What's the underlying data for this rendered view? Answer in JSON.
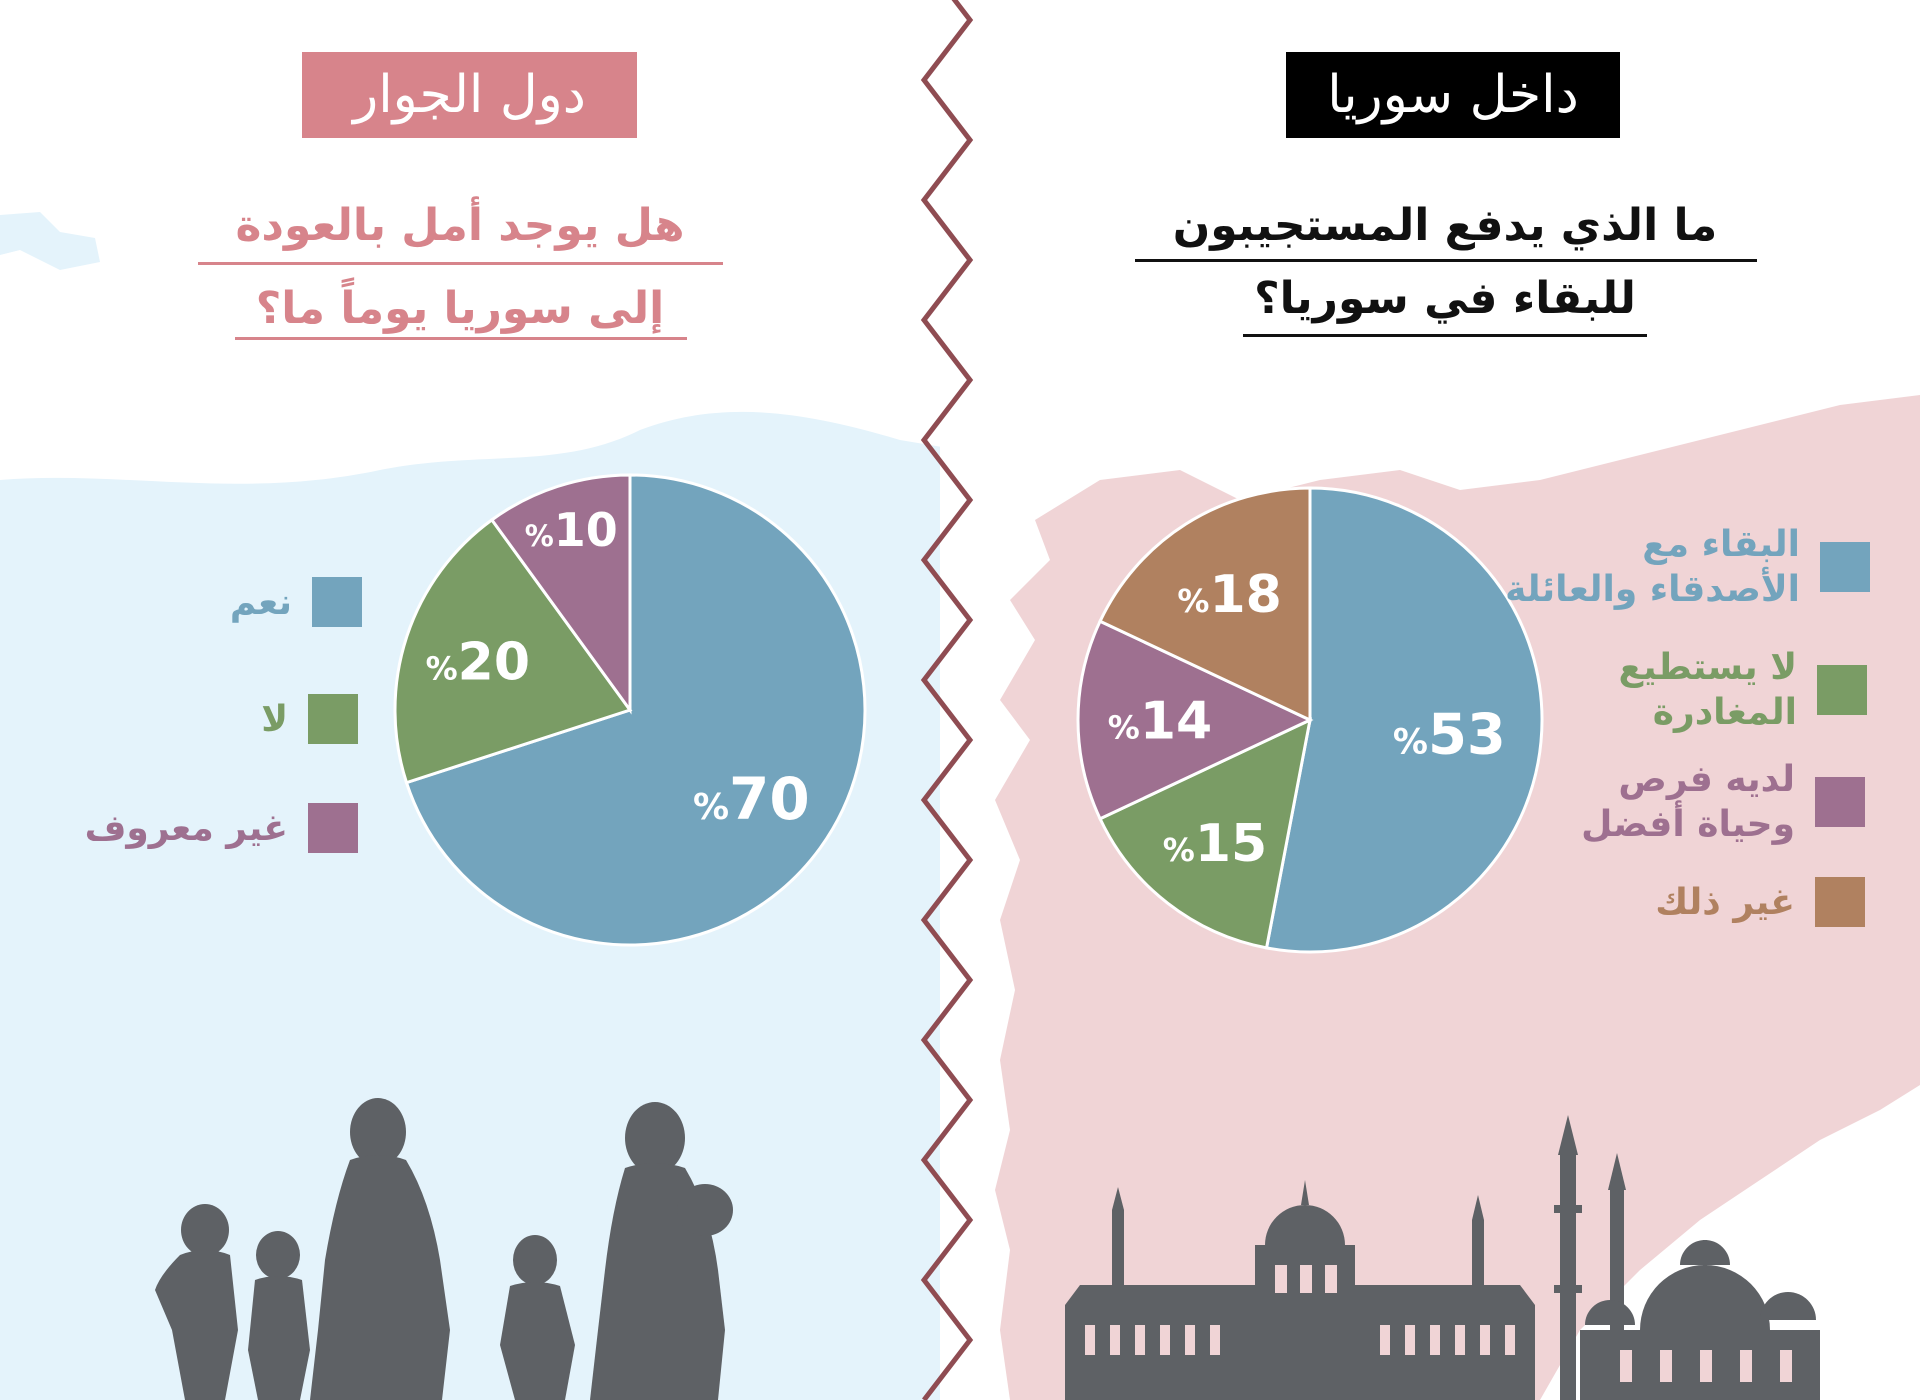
{
  "left_panel": {
    "header": "دول الجوار",
    "question_lines": [
      "هل يوجد أمل بالعودة",
      "إلى سوريا يوماً ما؟"
    ]
  },
  "right_panel": {
    "header": "داخل سوريا",
    "question_lines": [
      "ما الذي يدفع المستجيبون",
      "للبقاء في سوريا؟"
    ]
  },
  "colors": {
    "blue": "#73a4bd",
    "green": "#7a9c65",
    "purple": "#9e7090",
    "brown": "#b08160",
    "left_header_bg": "#d7848b",
    "right_header_bg": "#000000",
    "silhouette": "#5e6165",
    "divider": "#8f4c52"
  },
  "chart_data": [
    {
      "type": "pie",
      "title": "هل يوجد أمل بالعودة إلى سوريا يوماً ما؟",
      "series": [
        {
          "name": "نعم",
          "value": 70,
          "label": "70",
          "color": "#73a4bd"
        },
        {
          "name": "لا",
          "value": 20,
          "label": "20",
          "color": "#7a9c65"
        },
        {
          "name": "غير معروف",
          "value": 10,
          "label": "10",
          "color": "#9e7090"
        }
      ],
      "unit_symbol": "%",
      "legend": "left"
    },
    {
      "type": "pie",
      "title": "ما الذي يدفع المستجيبون للبقاء في سوريا؟",
      "series": [
        {
          "name": "البقاء مع الأصدقاء والعائلة",
          "label_lines": [
            "البقاء مع",
            "الأصدقاء والعائلة"
          ],
          "value": 53,
          "label": "53",
          "color": "#73a4bd"
        },
        {
          "name": "لا يستطيع المغادرة",
          "label_lines": [
            "لا يستطيع",
            "المغادرة"
          ],
          "value": 15,
          "label": "15",
          "color": "#7a9c65"
        },
        {
          "name": "لديه فرص وحياة أفضل",
          "label_lines": [
            "لديه فرص",
            "وحياة أفضل"
          ],
          "value": 14,
          "label": "14",
          "color": "#9e7090"
        },
        {
          "name": "غير ذلك",
          "label_lines": [
            "غير ذلك"
          ],
          "value": 18,
          "label": "18",
          "color": "#b08160"
        }
      ],
      "unit_symbol": "%",
      "legend": "right"
    }
  ]
}
